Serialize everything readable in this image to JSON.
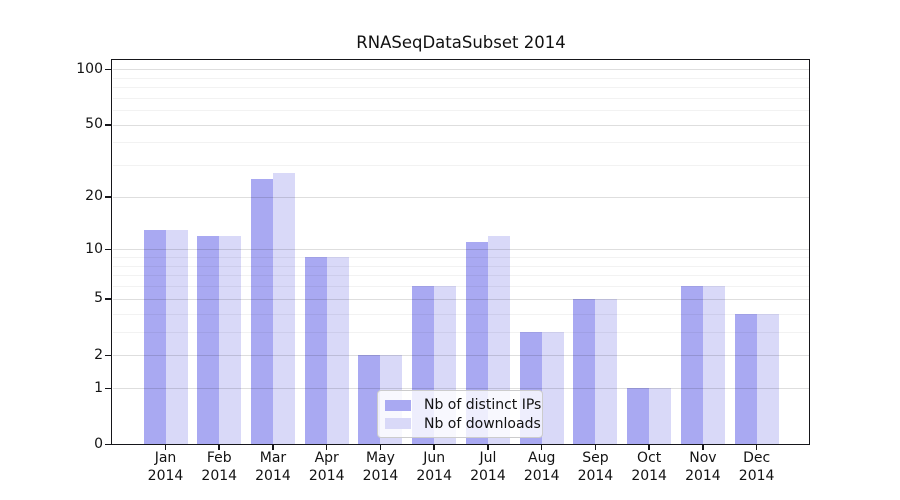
{
  "chart_data": {
    "type": "bar",
    "title": "RNASeqDataSubset 2014",
    "categories": [
      "Jan",
      "Feb",
      "Mar",
      "Apr",
      "May",
      "Jun",
      "Jul",
      "Aug",
      "Sep",
      "Oct",
      "Nov",
      "Dec"
    ],
    "category_year": "2014",
    "series": [
      {
        "name": "Nb of distinct IPs",
        "color": "#a9a9f2",
        "values": [
          13,
          12,
          25,
          9,
          2,
          6,
          11,
          3,
          5,
          1,
          6,
          4
        ]
      },
      {
        "name": "Nb of downloads",
        "color": "#d9d9f8",
        "values": [
          13,
          12,
          27,
          9,
          2,
          6,
          12,
          3,
          5,
          1,
          6,
          4
        ]
      }
    ],
    "xlabel": "",
    "ylabel": "",
    "yscale": "log1p",
    "ylim": [
      0,
      110
    ],
    "yticks": [
      0,
      1,
      2,
      5,
      10,
      20,
      50,
      100
    ],
    "y_minor_gridlines": [
      3,
      4,
      6,
      7,
      8,
      9,
      30,
      40,
      60,
      70,
      80,
      90
    ],
    "grid": true,
    "legend_position": "lower center inside"
  }
}
